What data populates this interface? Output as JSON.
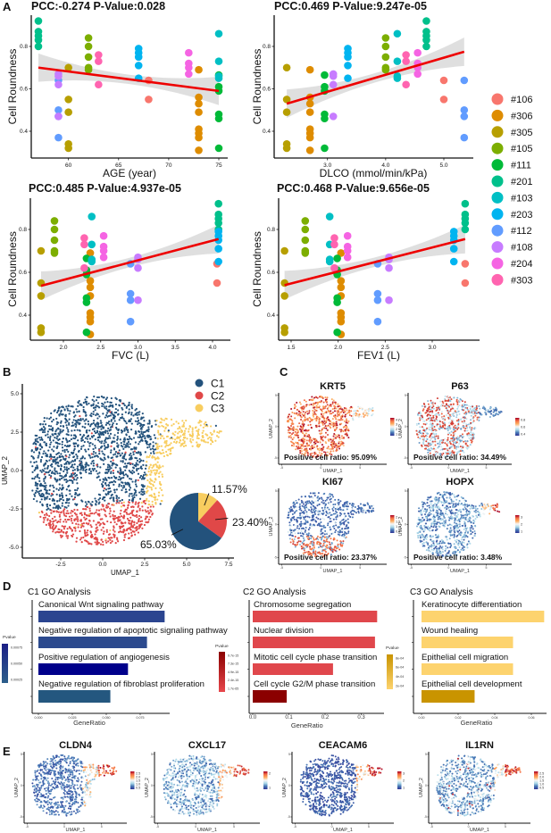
{
  "panel_labels": {
    "A": "A",
    "B": "B",
    "C": "C",
    "D": "D",
    "E": "E"
  },
  "samples": [
    {
      "id": "#106",
      "color": "#F8766D",
      "age": 68,
      "dlco": 5.0,
      "fvc": 4.06,
      "fev1": 3.35,
      "roundness": [
        0.64,
        0.55
      ]
    },
    {
      "id": "#306",
      "color": "#DE8C00",
      "age": 73,
      "dlco": 2.7,
      "fvc": 2.36,
      "fev1": 2.03,
      "roundness": [
        0.69,
        0.56,
        0.53,
        0.49,
        0.41,
        0.39,
        0.37,
        0.31
      ]
    },
    {
      "id": "#305",
      "color": "#B79F00",
      "age": 60,
      "dlco": 2.3,
      "fvc": 1.7,
      "fev1": 1.43,
      "roundness": [
        0.7,
        0.55,
        0.49,
        0.34,
        0.32
      ]
    },
    {
      "id": "#105",
      "color": "#7CAE00",
      "age": 62,
      "dlco": 4.0,
      "fvc": 1.88,
      "fev1": 1.65,
      "roundness": [
        0.84,
        0.8,
        0.75,
        0.7,
        0.69
      ]
    },
    {
      "id": "#111",
      "color": "#00BA38",
      "age": 75,
      "dlco": 2.95,
      "fvc": 2.31,
      "fev1": 1.99,
      "roundness": [
        0.665,
        0.61,
        0.59,
        0.48,
        0.46,
        0.32
      ]
    },
    {
      "id": "#201",
      "color": "#00C08B",
      "age": 57,
      "dlco": 4.7,
      "fvc": 4.08,
      "fev1": 3.35,
      "roundness": [
        0.92,
        0.87,
        0.85,
        0.83,
        0.8
      ]
    },
    {
      "id": "#103",
      "color": "#00BFC4",
      "age": 75,
      "dlco": 4.2,
      "fvc": 2.38,
      "fev1": 1.91,
      "roundness": [
        0.86,
        0.73,
        0.66,
        0.65
      ]
    },
    {
      "id": "#203",
      "color": "#00B4F0",
      "age": 67,
      "dlco": 3.35,
      "fvc": 4.08,
      "fev1": 3.23,
      "roundness": [
        0.79,
        0.77,
        0.75,
        0.71,
        0.65
      ]
    },
    {
      "id": "#112",
      "color": "#619CFF",
      "age": 59,
      "dlco": 5.35,
      "fvc": 2.9,
      "fev1": 2.42,
      "roundness": [
        0.64,
        0.5,
        0.47,
        0.37
      ]
    },
    {
      "id": "#108",
      "color": "#C77CFF",
      "age": 59,
      "dlco": 3.1,
      "fvc": 3.0,
      "fev1": 2.54,
      "roundness": [
        0.67,
        0.66,
        0.62,
        0.47
      ]
    },
    {
      "id": "#204",
      "color": "#F564E3",
      "age": 72,
      "dlco": 4.55,
      "fvc": 2.54,
      "fev1": 2.1,
      "roundness": [
        0.77,
        0.72,
        0.7,
        0.67
      ]
    },
    {
      "id": "#303",
      "color": "#FF64B0",
      "age": 63,
      "dlco": 4.35,
      "fvc": 2.28,
      "fev1": 1.96,
      "roundness": [
        0.76,
        0.73,
        0.62
      ]
    }
  ],
  "chart_data": [
    {
      "type": "scatter",
      "title": "PCC:-0.274 P-Value:0.028",
      "xlabel": "AGE (year)",
      "ylabel": "Cell Roundness",
      "x_variable": "age",
      "xticks": [
        "60",
        "65",
        "70",
        "75"
      ],
      "yticks": [
        "0.4",
        "0.6",
        "0.8"
      ],
      "xlim": [
        56.3,
        75.8
      ],
      "ylim": [
        0.27,
        0.95
      ],
      "fit_line": {
        "x": [
          57,
          75
        ],
        "y": [
          0.7,
          0.59
        ],
        "color": "#EE0000"
      }
    },
    {
      "type": "scatter",
      "title": "PCC:0.469 P-Value:9.247e-05",
      "xlabel": "DLCO (mmol/min/kPa)",
      "ylabel": "Cell Roundness",
      "x_variable": "dlco",
      "xticks": [
        "3.0",
        "4.0",
        "5.0"
      ],
      "yticks": [
        "0.4",
        "0.6",
        "0.8"
      ],
      "xlim": [
        2.2,
        5.5
      ],
      "ylim": [
        0.27,
        0.95
      ],
      "fit_line": {
        "x": [
          2.3,
          5.35
        ],
        "y": [
          0.53,
          0.775
        ],
        "color": "#EE0000"
      }
    },
    {
      "type": "scatter",
      "title": "PCC:0.485 P-Value:4.937e-05",
      "xlabel": "FVC (L)",
      "ylabel": "Cell Roundness",
      "x_variable": "fvc",
      "xticks": [
        "2.0",
        "2.5",
        "3.0",
        "3.5",
        "4.0"
      ],
      "yticks": [
        "0.4",
        "0.6",
        "0.8"
      ],
      "xlim": [
        1.6,
        4.25
      ],
      "ylim": [
        0.28,
        0.95
      ],
      "fit_line": {
        "x": [
          1.7,
          4.08
        ],
        "y": [
          0.537,
          0.755
        ],
        "color": "#EE0000"
      }
    },
    {
      "type": "scatter",
      "title": "PCC:0.468 P-Value:9.656e-05",
      "xlabel": "FEV1 (L)",
      "ylabel": "Cell Roundness",
      "x_variable": "fev1",
      "xticks": [
        "1.5",
        "2.0",
        "2.5",
        "3.0"
      ],
      "yticks": [
        "0.4",
        "0.6",
        "0.8"
      ],
      "xlim": [
        1.36,
        3.5
      ],
      "ylim": [
        0.28,
        0.95
      ],
      "fit_line": {
        "x": [
          1.43,
          3.35
        ],
        "y": [
          0.54,
          0.755
        ],
        "color": "#EE0000"
      }
    },
    {
      "type": "scatter",
      "xlabel": "UMAP_1",
      "ylabel": "UMAP_2",
      "xticks": [
        "-2.5",
        "0.0",
        "2.5",
        "5.0",
        "7.5"
      ],
      "yticks": [
        "-5.0",
        "-2.5",
        "0.0",
        "2.5",
        "5.0"
      ],
      "xlim": [
        -4.8,
        7.6
      ],
      "ylim": [
        -5.6,
        5.6
      ],
      "legend": [
        {
          "label": "C1",
          "color": "#23527C"
        },
        {
          "label": "C2",
          "color": "#E04848"
        },
        {
          "label": "C3",
          "color": "#F8CD5F"
        }
      ]
    },
    {
      "type": "pie",
      "slices": [
        {
          "cluster": "C3",
          "value": 11.57,
          "label": "11.57%",
          "color": "#F8CD5F"
        },
        {
          "cluster": "C2",
          "value": 23.4,
          "label": "23.40%",
          "color": "#E04848"
        },
        {
          "cluster": "C1",
          "value": 65.03,
          "label": "65.03%",
          "color": "#23527C"
        }
      ]
    },
    {
      "type": "bar",
      "orientation": "horizontal",
      "title": "C1 GO Analysis",
      "xlabel": "GeneRatio",
      "xticks": [
        "0.000",
        "0.025",
        "0.050",
        "0.075"
      ],
      "xlim": [
        0,
        0.1
      ],
      "legend": {
        "title": "Pvalue",
        "ticks": [
          "0.00075",
          "0.00050",
          "0.00025"
        ],
        "colors": [
          "#1B1F86",
          "#2D5F8B"
        ]
      },
      "terms": [
        {
          "label": "Canonical Wnt signaling pathway",
          "value": 0.093,
          "color": "#2B4590"
        },
        {
          "label": "Negative regulation of apoptotic signaling pathway",
          "value": 0.08,
          "color": "#2C4A8E"
        },
        {
          "label": "Positive regulation of angiogenesis",
          "value": 0.066,
          "color": "#00008B"
        },
        {
          "label": "Negative regulation of fibroblast proliferation",
          "value": 0.053,
          "color": "#24577F"
        }
      ]
    },
    {
      "type": "bar",
      "orientation": "horizontal",
      "title": "C2 GO Analysis",
      "xlabel": "GeneRatio",
      "xticks": [
        "0.0",
        "0.1",
        "0.2",
        "0.3"
      ],
      "xlim": [
        0,
        0.36
      ],
      "legend": {
        "title": "Pvalue",
        "ticks": [
          "9.7e-15",
          "7.3e-15",
          "4.9e-15",
          "2.4e-15",
          "1.7e-65"
        ],
        "colors": [
          "#8B0000",
          "#E8474C"
        ]
      },
      "terms": [
        {
          "label": "Chromosome segregation",
          "value": 0.344,
          "color": "#E0474C"
        },
        {
          "label": "Nuclear division",
          "value": 0.338,
          "color": "#E0474C"
        },
        {
          "label": "Mitotic cell cycle phase transition",
          "value": 0.222,
          "color": "#E0474C"
        },
        {
          "label": "Cell cycle G2/M phase transition",
          "value": 0.094,
          "color": "#8B0000"
        }
      ]
    },
    {
      "type": "bar",
      "orientation": "horizontal",
      "title": "C3 GO Analysis",
      "xlabel": "GeneRatio",
      "xticks": [
        "0.00",
        "0.02",
        "0.04",
        "0.06"
      ],
      "xlim": [
        0,
        0.07
      ],
      "legend": {
        "title": "Pvalue",
        "ticks": [
          "8e-04",
          "6e-04",
          "4e-04",
          "2e-04"
        ],
        "colors": [
          "#C99400",
          "#FDD36E"
        ]
      },
      "terms": [
        {
          "label": "Keratinocyte differentiation",
          "value": 0.067,
          "color": "#FDD36E"
        },
        {
          "label": "Wound healing",
          "value": 0.05,
          "color": "#FDD36E"
        },
        {
          "label": "Epithelial cell migration",
          "value": 0.05,
          "color": "#FDD36E"
        },
        {
          "label": "Epithelial cell development",
          "value": 0.029,
          "color": "#C99400"
        }
      ]
    }
  ],
  "feature_axes": {
    "xlabel": "UMAP_1",
    "ylabel": "UMAP_2",
    "xticks": [
      "-5",
      "0",
      "5"
    ],
    "yticks": [
      "-5",
      "0",
      "5"
    ]
  },
  "features": [
    {
      "gene": "KRT5",
      "ratio": "Positive cell ratio: 95.09%",
      "legend_ticks": [
        "4",
        "3",
        "2",
        "1"
      ]
    },
    {
      "gene": "P63",
      "ratio": "Positive cell ratio: 34.49%",
      "legend_ticks": [
        "0.8",
        "0.6",
        "0.4"
      ]
    },
    {
      "gene": "KI67",
      "ratio": "Positive cell ratio: 23.37%",
      "legend_ticks": [
        "2",
        "1.5",
        "1",
        "0.5"
      ]
    },
    {
      "gene": "HOPX",
      "ratio": "Positive cell ratio: 3.48%",
      "legend_ticks": [
        "3",
        "2",
        "1"
      ]
    }
  ],
  "markers": [
    {
      "gene": "CLDN4",
      "legend_ticks": [
        "2.5",
        "2.0",
        "1.5",
        "1.0",
        "0.5"
      ]
    },
    {
      "gene": "CXCL17",
      "legend_ticks": [
        "2",
        "1"
      ]
    },
    {
      "gene": "CEACAM6",
      "legend_ticks": [
        "3",
        "2",
        "1"
      ]
    },
    {
      "gene": "IL1RN",
      "legend_ticks": [
        "2.5",
        "2.0",
        "1.5",
        "1.0",
        "0.5"
      ]
    }
  ],
  "expression_scale": [
    "#313695",
    "#4575B4",
    "#ABD9E9",
    "#F7F7F7",
    "#FDAE61",
    "#F46D43",
    "#A50026"
  ]
}
